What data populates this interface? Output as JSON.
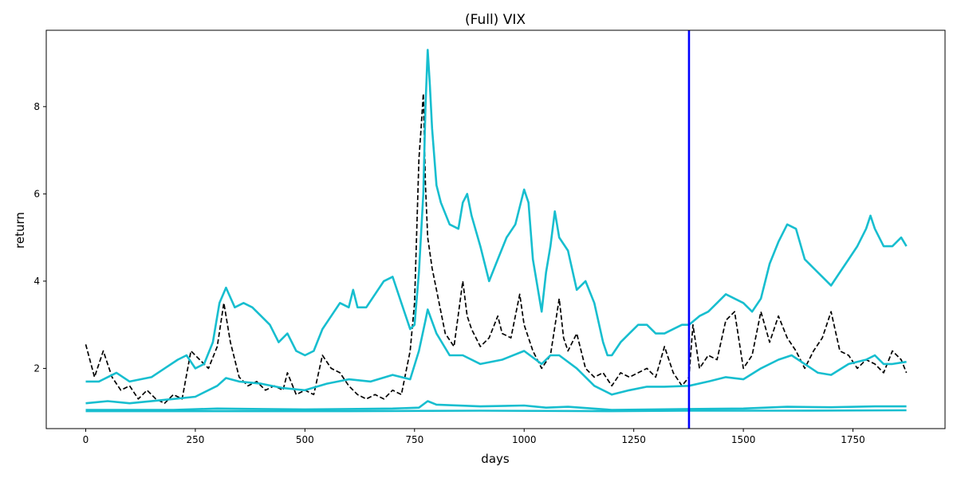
{
  "chart_data": {
    "type": "line",
    "title": "(Full) VIX",
    "xlabel": "days",
    "ylabel": "return",
    "xlim": [
      -90,
      1960
    ],
    "ylim": [
      0.62,
      9.75
    ],
    "x_ticks": [
      0,
      250,
      500,
      750,
      1000,
      1250,
      1500,
      1750
    ],
    "y_ticks": [
      2,
      4,
      6,
      8
    ],
    "grid": false,
    "legend": "none",
    "vline": {
      "x": 1376,
      "color": "#0000ff"
    },
    "series": [
      {
        "style": "dashed",
        "color": "#000000",
        "points": [
          [
            0,
            2.55
          ],
          [
            20,
            1.8
          ],
          [
            40,
            2.4
          ],
          [
            60,
            1.8
          ],
          [
            80,
            1.5
          ],
          [
            100,
            1.6
          ],
          [
            120,
            1.3
          ],
          [
            140,
            1.5
          ],
          [
            160,
            1.3
          ],
          [
            180,
            1.2
          ],
          [
            200,
            1.4
          ],
          [
            220,
            1.3
          ],
          [
            240,
            2.4
          ],
          [
            260,
            2.2
          ],
          [
            280,
            2.0
          ],
          [
            300,
            2.5
          ],
          [
            315,
            3.5
          ],
          [
            330,
            2.6
          ],
          [
            350,
            1.8
          ],
          [
            370,
            1.6
          ],
          [
            390,
            1.7
          ],
          [
            410,
            1.5
          ],
          [
            430,
            1.6
          ],
          [
            450,
            1.5
          ],
          [
            460,
            1.9
          ],
          [
            480,
            1.4
          ],
          [
            500,
            1.5
          ],
          [
            520,
            1.4
          ],
          [
            540,
            2.3
          ],
          [
            560,
            2.0
          ],
          [
            580,
            1.9
          ],
          [
            600,
            1.6
          ],
          [
            620,
            1.4
          ],
          [
            640,
            1.3
          ],
          [
            660,
            1.4
          ],
          [
            680,
            1.3
          ],
          [
            700,
            1.5
          ],
          [
            720,
            1.4
          ],
          [
            740,
            2.4
          ],
          [
            750,
            3.5
          ],
          [
            760,
            6.8
          ],
          [
            765,
            7.5
          ],
          [
            770,
            8.3
          ],
          [
            775,
            6.2
          ],
          [
            780,
            5.0
          ],
          [
            790,
            4.3
          ],
          [
            800,
            3.8
          ],
          [
            820,
            2.8
          ],
          [
            840,
            2.5
          ],
          [
            860,
            4.0
          ],
          [
            870,
            3.2
          ],
          [
            880,
            2.9
          ],
          [
            900,
            2.5
          ],
          [
            920,
            2.7
          ],
          [
            940,
            3.2
          ],
          [
            950,
            2.8
          ],
          [
            970,
            2.7
          ],
          [
            990,
            3.7
          ],
          [
            1000,
            3.0
          ],
          [
            1020,
            2.4
          ],
          [
            1040,
            2.0
          ],
          [
            1060,
            2.3
          ],
          [
            1080,
            3.6
          ],
          [
            1090,
            2.7
          ],
          [
            1100,
            2.4
          ],
          [
            1120,
            2.8
          ],
          [
            1140,
            2.0
          ],
          [
            1160,
            1.8
          ],
          [
            1180,
            1.9
          ],
          [
            1200,
            1.6
          ],
          [
            1220,
            1.9
          ],
          [
            1240,
            1.8
          ],
          [
            1260,
            1.9
          ],
          [
            1280,
            2.0
          ],
          [
            1300,
            1.8
          ],
          [
            1320,
            2.5
          ],
          [
            1340,
            1.9
          ],
          [
            1360,
            1.6
          ],
          [
            1376,
            1.8
          ],
          [
            1385,
            3.0
          ],
          [
            1400,
            2.0
          ],
          [
            1420,
            2.3
          ],
          [
            1440,
            2.2
          ],
          [
            1460,
            3.1
          ],
          [
            1480,
            3.3
          ],
          [
            1500,
            2.0
          ],
          [
            1520,
            2.3
          ],
          [
            1540,
            3.3
          ],
          [
            1560,
            2.6
          ],
          [
            1580,
            3.2
          ],
          [
            1600,
            2.7
          ],
          [
            1620,
            2.4
          ],
          [
            1640,
            2.0
          ],
          [
            1660,
            2.4
          ],
          [
            1680,
            2.7
          ],
          [
            1700,
            3.3
          ],
          [
            1720,
            2.4
          ],
          [
            1740,
            2.3
          ],
          [
            1760,
            2.0
          ],
          [
            1780,
            2.2
          ],
          [
            1800,
            2.1
          ],
          [
            1820,
            1.9
          ],
          [
            1840,
            2.4
          ],
          [
            1860,
            2.2
          ],
          [
            1872,
            1.9
          ]
        ]
      },
      {
        "style": "solid",
        "color": "#17becf",
        "points": [
          [
            0,
            1.7
          ],
          [
            30,
            1.7
          ],
          [
            50,
            1.8
          ],
          [
            70,
            1.9
          ],
          [
            100,
            1.7
          ],
          [
            150,
            1.8
          ],
          [
            180,
            2.0
          ],
          [
            210,
            2.2
          ],
          [
            230,
            2.3
          ],
          [
            250,
            2.0
          ],
          [
            270,
            2.1
          ],
          [
            290,
            2.6
          ],
          [
            305,
            3.5
          ],
          [
            320,
            3.85
          ],
          [
            340,
            3.4
          ],
          [
            360,
            3.5
          ],
          [
            380,
            3.4
          ],
          [
            400,
            3.2
          ],
          [
            420,
            3.0
          ],
          [
            440,
            2.6
          ],
          [
            460,
            2.8
          ],
          [
            480,
            2.4
          ],
          [
            500,
            2.3
          ],
          [
            520,
            2.4
          ],
          [
            540,
            2.9
          ],
          [
            560,
            3.2
          ],
          [
            580,
            3.5
          ],
          [
            600,
            3.4
          ],
          [
            610,
            3.8
          ],
          [
            620,
            3.4
          ],
          [
            640,
            3.4
          ],
          [
            660,
            3.7
          ],
          [
            680,
            4.0
          ],
          [
            700,
            4.1
          ],
          [
            720,
            3.5
          ],
          [
            740,
            2.9
          ],
          [
            750,
            3.0
          ],
          [
            760,
            4.2
          ],
          [
            770,
            6.0
          ],
          [
            775,
            8.0
          ],
          [
            780,
            9.3
          ],
          [
            785,
            8.5
          ],
          [
            790,
            7.5
          ],
          [
            800,
            6.2
          ],
          [
            810,
            5.8
          ],
          [
            830,
            5.3
          ],
          [
            850,
            5.2
          ],
          [
            860,
            5.8
          ],
          [
            870,
            6.0
          ],
          [
            880,
            5.5
          ],
          [
            900,
            4.8
          ],
          [
            920,
            4.0
          ],
          [
            940,
            4.5
          ],
          [
            960,
            5.0
          ],
          [
            980,
            5.3
          ],
          [
            1000,
            6.1
          ],
          [
            1010,
            5.8
          ],
          [
            1020,
            4.5
          ],
          [
            1040,
            3.3
          ],
          [
            1050,
            4.2
          ],
          [
            1060,
            4.8
          ],
          [
            1070,
            5.6
          ],
          [
            1080,
            5.0
          ],
          [
            1100,
            4.7
          ],
          [
            1120,
            3.8
          ],
          [
            1140,
            4.0
          ],
          [
            1160,
            3.5
          ],
          [
            1180,
            2.6
          ],
          [
            1190,
            2.3
          ],
          [
            1200,
            2.3
          ],
          [
            1220,
            2.6
          ],
          [
            1240,
            2.8
          ],
          [
            1260,
            3.0
          ],
          [
            1280,
            3.0
          ],
          [
            1300,
            2.8
          ],
          [
            1320,
            2.8
          ],
          [
            1340,
            2.9
          ],
          [
            1360,
            3.0
          ],
          [
            1376,
            3.0
          ],
          [
            1400,
            3.2
          ],
          [
            1420,
            3.3
          ],
          [
            1440,
            3.5
          ],
          [
            1460,
            3.7
          ],
          [
            1480,
            3.6
          ],
          [
            1500,
            3.5
          ],
          [
            1520,
            3.3
          ],
          [
            1540,
            3.6
          ],
          [
            1560,
            4.4
          ],
          [
            1580,
            4.9
          ],
          [
            1600,
            5.3
          ],
          [
            1620,
            5.2
          ],
          [
            1640,
            4.5
          ],
          [
            1660,
            4.3
          ],
          [
            1680,
            4.1
          ],
          [
            1700,
            3.9
          ],
          [
            1720,
            4.2
          ],
          [
            1740,
            4.5
          ],
          [
            1760,
            4.8
          ],
          [
            1780,
            5.2
          ],
          [
            1790,
            5.5
          ],
          [
            1800,
            5.2
          ],
          [
            1820,
            4.8
          ],
          [
            1840,
            4.8
          ],
          [
            1860,
            5.0
          ],
          [
            1872,
            4.8
          ]
        ]
      },
      {
        "style": "solid",
        "color": "#17becf",
        "points": [
          [
            0,
            1.2
          ],
          [
            50,
            1.25
          ],
          [
            100,
            1.2
          ],
          [
            200,
            1.3
          ],
          [
            250,
            1.35
          ],
          [
            300,
            1.6
          ],
          [
            320,
            1.78
          ],
          [
            350,
            1.7
          ],
          [
            400,
            1.65
          ],
          [
            450,
            1.55
          ],
          [
            500,
            1.5
          ],
          [
            550,
            1.65
          ],
          [
            600,
            1.75
          ],
          [
            650,
            1.7
          ],
          [
            700,
            1.85
          ],
          [
            740,
            1.75
          ],
          [
            760,
            2.4
          ],
          [
            775,
            3.1
          ],
          [
            780,
            3.35
          ],
          [
            800,
            2.8
          ],
          [
            830,
            2.3
          ],
          [
            860,
            2.3
          ],
          [
            900,
            2.1
          ],
          [
            950,
            2.2
          ],
          [
            1000,
            2.4
          ],
          [
            1040,
            2.1
          ],
          [
            1060,
            2.3
          ],
          [
            1080,
            2.3
          ],
          [
            1120,
            2.0
          ],
          [
            1160,
            1.6
          ],
          [
            1200,
            1.4
          ],
          [
            1240,
            1.5
          ],
          [
            1280,
            1.58
          ],
          [
            1320,
            1.58
          ],
          [
            1376,
            1.6
          ],
          [
            1420,
            1.7
          ],
          [
            1460,
            1.8
          ],
          [
            1500,
            1.75
          ],
          [
            1540,
            2.0
          ],
          [
            1580,
            2.2
          ],
          [
            1610,
            2.3
          ],
          [
            1640,
            2.1
          ],
          [
            1670,
            1.9
          ],
          [
            1700,
            1.85
          ],
          [
            1740,
            2.1
          ],
          [
            1780,
            2.2
          ],
          [
            1800,
            2.3
          ],
          [
            1820,
            2.1
          ],
          [
            1840,
            2.1
          ],
          [
            1872,
            2.15
          ]
        ]
      },
      {
        "style": "solid",
        "color": "#17becf",
        "points": [
          [
            0,
            1.05
          ],
          [
            200,
            1.05
          ],
          [
            300,
            1.08
          ],
          [
            400,
            1.07
          ],
          [
            500,
            1.06
          ],
          [
            600,
            1.07
          ],
          [
            700,
            1.08
          ],
          [
            760,
            1.1
          ],
          [
            780,
            1.25
          ],
          [
            800,
            1.17
          ],
          [
            900,
            1.13
          ],
          [
            1000,
            1.15
          ],
          [
            1050,
            1.1
          ],
          [
            1100,
            1.12
          ],
          [
            1200,
            1.05
          ],
          [
            1300,
            1.06
          ],
          [
            1376,
            1.07
          ],
          [
            1500,
            1.08
          ],
          [
            1600,
            1.12
          ],
          [
            1700,
            1.11
          ],
          [
            1800,
            1.13
          ],
          [
            1872,
            1.13
          ]
        ]
      },
      {
        "style": "solid",
        "color": "#17becf",
        "points": [
          [
            0,
            1.02
          ],
          [
            300,
            1.02
          ],
          [
            600,
            1.02
          ],
          [
            900,
            1.03
          ],
          [
            1200,
            1.02
          ],
          [
            1376,
            1.03
          ],
          [
            1600,
            1.03
          ],
          [
            1872,
            1.04
          ]
        ]
      }
    ]
  }
}
